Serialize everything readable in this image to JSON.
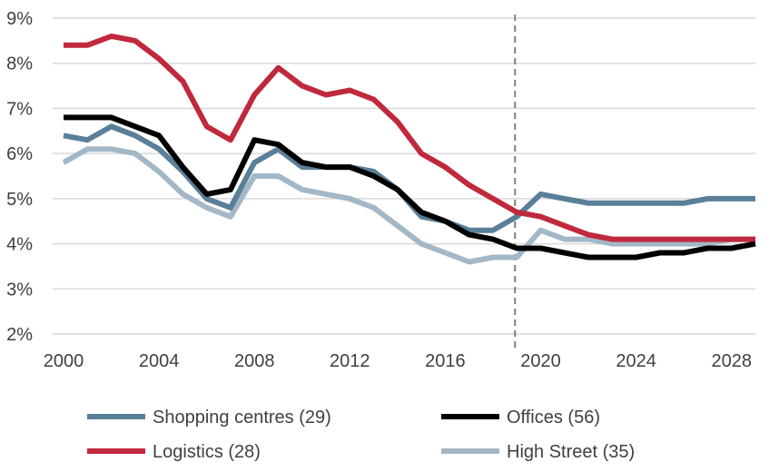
{
  "chart_data": {
    "type": "line",
    "title": "",
    "xlabel": "",
    "ylabel": "",
    "x": [
      2000,
      2001,
      2002,
      2003,
      2004,
      2005,
      2006,
      2007,
      2008,
      2009,
      2010,
      2011,
      2012,
      2013,
      2014,
      2015,
      2016,
      2017,
      2018,
      2019,
      2020,
      2021,
      2022,
      2023,
      2024,
      2025,
      2026,
      2027,
      2028,
      2029
    ],
    "xlim": [
      2000,
      2029
    ],
    "ylim": [
      2,
      9
    ],
    "x_ticks": [
      2000,
      2004,
      2008,
      2012,
      2016,
      2020,
      2024,
      2028
    ],
    "x_tick_labels": [
      "2000",
      "2004",
      "2008",
      "2012",
      "2016",
      "2020",
      "2024",
      "2028"
    ],
    "y_ticks": [
      2,
      3,
      4,
      5,
      6,
      7,
      8,
      9
    ],
    "y_tick_labels": [
      "2%",
      "3%",
      "4%",
      "5%",
      "6%",
      "7%",
      "8%",
      "9%"
    ],
    "grid": "horizontal",
    "legend_position": "bottom",
    "vertical_marker_x": 2019,
    "series": [
      {
        "name": "Shopping centres (29)",
        "color": "#5a7f98",
        "values": [
          6.4,
          6.3,
          6.6,
          6.4,
          6.1,
          5.6,
          5.0,
          4.8,
          5.8,
          6.1,
          5.7,
          5.7,
          5.7,
          5.6,
          5.2,
          4.6,
          4.5,
          4.3,
          4.3,
          4.6,
          5.1,
          5.0,
          4.9,
          4.9,
          4.9,
          4.9,
          4.9,
          5.0,
          5.0,
          5.0
        ]
      },
      {
        "name": "Offices (56)",
        "color": "#000000",
        "values": [
          6.8,
          6.8,
          6.8,
          6.6,
          6.4,
          5.7,
          5.1,
          5.2,
          6.3,
          6.2,
          5.8,
          5.7,
          5.7,
          5.5,
          5.2,
          4.7,
          4.5,
          4.2,
          4.1,
          3.9,
          3.9,
          3.8,
          3.7,
          3.7,
          3.7,
          3.8,
          3.8,
          3.9,
          3.9,
          4.0
        ]
      },
      {
        "name": "Logistics (28)",
        "color": "#c0293d",
        "values": [
          8.4,
          8.4,
          8.6,
          8.5,
          8.1,
          7.6,
          6.6,
          6.3,
          7.3,
          7.9,
          7.5,
          7.3,
          7.4,
          7.2,
          6.7,
          6.0,
          5.7,
          5.3,
          5.0,
          4.7,
          4.6,
          4.4,
          4.2,
          4.1,
          4.1,
          4.1,
          4.1,
          4.1,
          4.1,
          4.1
        ]
      },
      {
        "name": "High Street (35)",
        "color": "#a3b8c7",
        "values": [
          5.8,
          6.1,
          6.1,
          6.0,
          5.6,
          5.1,
          4.8,
          4.6,
          5.5,
          5.5,
          5.2,
          5.1,
          5.0,
          4.8,
          4.4,
          4.0,
          3.8,
          3.6,
          3.7,
          3.7,
          4.3,
          4.1,
          4.1,
          4.0,
          4.0,
          4.0,
          4.0,
          4.0,
          4.1,
          4.1
        ]
      }
    ]
  }
}
